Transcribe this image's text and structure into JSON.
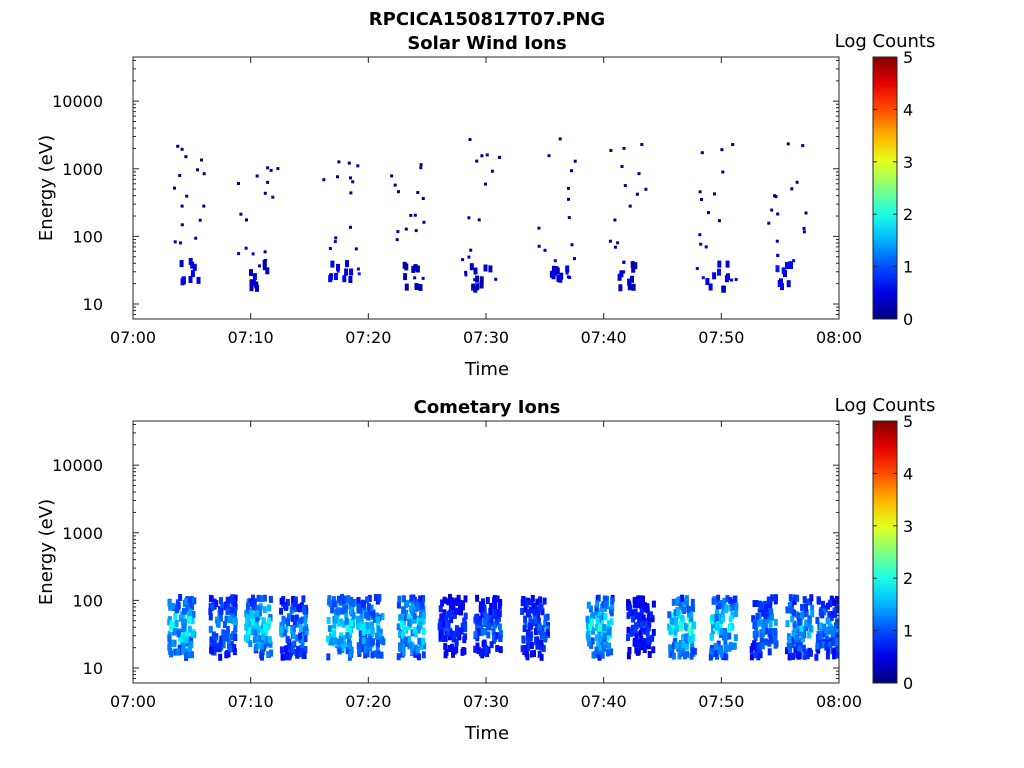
{
  "figure": {
    "main_title": "RPCICA150817T07.PNG"
  },
  "chart_data": [
    {
      "type": "heatmap",
      "title": "Solar Wind Ions",
      "xlabel": "Time",
      "ylabel": "Energy (eV)",
      "x_ticks": [
        "07:00",
        "07:10",
        "07:20",
        "07:30",
        "07:40",
        "07:50",
        "08:00"
      ],
      "y_ticks": [
        "10",
        "100",
        "1000",
        "10000"
      ],
      "y_scale": "log",
      "xlim": [
        "07:00",
        "08:00"
      ],
      "ylim": [
        6,
        45000
      ],
      "colorbar": {
        "label": "Log Counts",
        "range": [
          0,
          5
        ],
        "ticks": [
          "0",
          "1",
          "2",
          "3",
          "4",
          "5"
        ],
        "colormap": "jet"
      },
      "bursts": [
        {
          "time": "07:04:30",
          "level": 0.7
        },
        {
          "time": "07:10:30",
          "level": 0.5
        },
        {
          "time": "07:17:30",
          "level": 0.7
        },
        {
          "time": "07:23:30",
          "level": 0.4
        },
        {
          "time": "07:29:30",
          "level": 0.4
        },
        {
          "time": "07:36:00",
          "level": 0.5
        },
        {
          "time": "07:42:00",
          "level": 0.5
        },
        {
          "time": "07:49:30",
          "level": 0.7
        },
        {
          "time": "07:55:30",
          "level": 0.8
        }
      ]
    },
    {
      "type": "heatmap",
      "title": "Cometary Ions",
      "xlabel": "Time",
      "ylabel": "Energy (eV)",
      "x_ticks": [
        "07:00",
        "07:10",
        "07:20",
        "07:30",
        "07:40",
        "07:50",
        "08:00"
      ],
      "y_ticks": [
        "10",
        "100",
        "1000",
        "10000"
      ],
      "y_scale": "log",
      "xlim": [
        "07:00",
        "08:00"
      ],
      "ylim": [
        6,
        45000
      ],
      "colorbar": {
        "label": "Log Counts",
        "range": [
          0,
          5
        ],
        "ticks": [
          "0",
          "1",
          "2",
          "3",
          "4",
          "5"
        ],
        "colormap": "jet"
      },
      "bursts": [
        {
          "time": "07:04:00",
          "level": 2.0
        },
        {
          "time": "07:07:30",
          "level": 1.5
        },
        {
          "time": "07:10:30",
          "level": 2.0
        },
        {
          "time": "07:13:30",
          "level": 1.5
        },
        {
          "time": "07:17:30",
          "level": 2.1
        },
        {
          "time": "07:20:00",
          "level": 1.8
        },
        {
          "time": "07:23:30",
          "level": 2.0
        },
        {
          "time": "07:27:00",
          "level": 1.0
        },
        {
          "time": "07:30:00",
          "level": 1.2
        },
        {
          "time": "07:34:00",
          "level": 1.2
        },
        {
          "time": "07:39:30",
          "level": 2.0
        },
        {
          "time": "07:43:00",
          "level": 1.0
        },
        {
          "time": "07:46:30",
          "level": 2.2
        },
        {
          "time": "07:50:00",
          "level": 2.0
        },
        {
          "time": "07:53:30",
          "level": 1.5
        },
        {
          "time": "07:56:30",
          "level": 1.7
        },
        {
          "time": "07:59:00",
          "level": 1.5
        }
      ]
    }
  ]
}
